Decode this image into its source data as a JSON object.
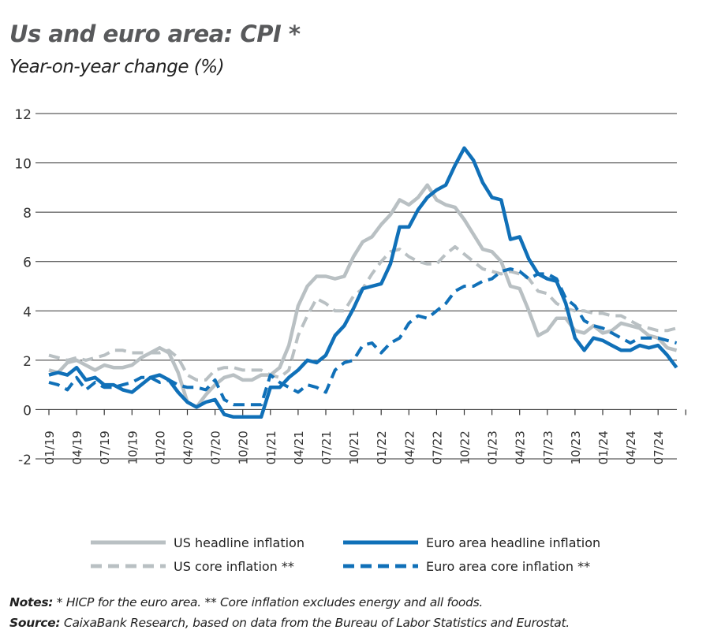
{
  "title": "Us and euro area: CPI *",
  "subtitle": "Year-on-year change (%)",
  "chart_data": {
    "type": "line",
    "title": "Us and euro area: CPI *",
    "subtitle": "Year-on-year change (%)",
    "ylim": [
      -2,
      12
    ],
    "yticks": [
      -2,
      0,
      2,
      4,
      6,
      8,
      10,
      12
    ],
    "grid": "horizontal",
    "legend_position": "bottom",
    "x_start": "01/19",
    "x_tick_labels": [
      "01/19",
      "04/19",
      "07/19",
      "10/19",
      "01/20",
      "04/20",
      "07/20",
      "10/20",
      "01/21",
      "04/21",
      "07/21",
      "10/21",
      "01/22",
      "04/22",
      "07/22",
      "10/22",
      "01/23",
      "04/23",
      "07/23",
      "10/23",
      "01/24",
      "04/24",
      "07/24"
    ],
    "series": [
      {
        "name": "US headline inflation",
        "color": "#b9c0c3",
        "style": "solid",
        "values": [
          1.6,
          1.5,
          1.9,
          2.0,
          1.8,
          1.6,
          1.8,
          1.7,
          1.7,
          1.8,
          2.1,
          2.3,
          2.5,
          2.3,
          1.5,
          0.3,
          0.1,
          0.6,
          1.0,
          1.3,
          1.4,
          1.2,
          1.2,
          1.4,
          1.4,
          1.7,
          2.6,
          4.2,
          5.0,
          5.4,
          5.4,
          5.3,
          5.4,
          6.2,
          6.8,
          7.0,
          7.5,
          7.9,
          8.5,
          8.3,
          8.6,
          9.1,
          8.5,
          8.3,
          8.2,
          7.7,
          7.1,
          6.5,
          6.4,
          6.0,
          5.0,
          4.9,
          4.0,
          3.0,
          3.2,
          3.7,
          3.7,
          3.2,
          3.1,
          3.4,
          3.1,
          3.2,
          3.5,
          3.4,
          3.3,
          3.0,
          2.9,
          2.5,
          2.4
        ]
      },
      {
        "name": "Euro area headline inflation",
        "color": "#1070b8",
        "style": "solid",
        "values": [
          1.4,
          1.5,
          1.4,
          1.7,
          1.2,
          1.3,
          1.0,
          1.0,
          0.8,
          0.7,
          1.0,
          1.3,
          1.4,
          1.2,
          0.7,
          0.3,
          0.1,
          0.3,
          0.4,
          -0.2,
          -0.3,
          -0.3,
          -0.3,
          -0.3,
          0.9,
          0.9,
          1.3,
          1.6,
          2.0,
          1.9,
          2.2,
          3.0,
          3.4,
          4.1,
          4.9,
          5.0,
          5.1,
          5.9,
          7.4,
          7.4,
          8.1,
          8.6,
          8.9,
          9.1,
          9.9,
          10.6,
          10.1,
          9.2,
          8.6,
          8.5,
          6.9,
          7.0,
          6.1,
          5.5,
          5.3,
          5.2,
          4.3,
          2.9,
          2.4,
          2.9,
          2.8,
          2.6,
          2.4,
          2.4,
          2.6,
          2.5,
          2.6,
          2.2,
          1.7
        ]
      },
      {
        "name": "US core inflation **",
        "color": "#b9c0c3",
        "style": "dashed",
        "values": [
          2.2,
          2.1,
          2.0,
          2.1,
          2.0,
          2.1,
          2.2,
          2.4,
          2.4,
          2.3,
          2.3,
          2.3,
          2.3,
          2.4,
          2.1,
          1.4,
          1.2,
          1.2,
          1.6,
          1.7,
          1.7,
          1.6,
          1.6,
          1.6,
          1.4,
          1.3,
          1.6,
          3.0,
          3.8,
          4.5,
          4.3,
          4.0,
          4.0,
          4.6,
          4.9,
          5.5,
          6.0,
          6.4,
          6.5,
          6.2,
          6.0,
          5.9,
          5.9,
          6.3,
          6.6,
          6.3,
          6.0,
          5.7,
          5.6,
          5.5,
          5.6,
          5.5,
          5.3,
          4.8,
          4.7,
          4.3,
          4.1,
          4.0,
          4.0,
          3.9,
          3.9,
          3.8,
          3.8,
          3.6,
          3.4,
          3.3,
          3.2,
          3.2,
          3.3
        ]
      },
      {
        "name": "Euro area core inflation **",
        "color": "#1070b8",
        "style": "dashed",
        "values": [
          1.1,
          1.0,
          0.8,
          1.3,
          0.8,
          1.1,
          0.9,
          0.9,
          1.0,
          1.1,
          1.3,
          1.3,
          1.1,
          1.2,
          1.0,
          0.9,
          0.9,
          0.8,
          1.2,
          0.4,
          0.2,
          0.2,
          0.2,
          0.2,
          1.4,
          1.1,
          0.9,
          0.7,
          1.0,
          0.9,
          0.7,
          1.6,
          1.9,
          2.0,
          2.6,
          2.7,
          2.3,
          2.7,
          2.9,
          3.5,
          3.8,
          3.7,
          4.0,
          4.3,
          4.8,
          5.0,
          5.0,
          5.2,
          5.3,
          5.6,
          5.7,
          5.6,
          5.3,
          5.5,
          5.5,
          5.3,
          4.5,
          4.2,
          3.6,
          3.4,
          3.3,
          3.1,
          2.9,
          2.7,
          2.9,
          2.9,
          2.9,
          2.8,
          2.7
        ]
      }
    ]
  },
  "notes": {
    "notes_label": "Notes:",
    "notes_text": " * HICP for the euro area. ** Core inflation excludes energy and all foods.",
    "source_label": "Source:",
    "source_text": " CaixaBank Research, based on data from the Bureau of Labor Statistics and Eurostat."
  }
}
